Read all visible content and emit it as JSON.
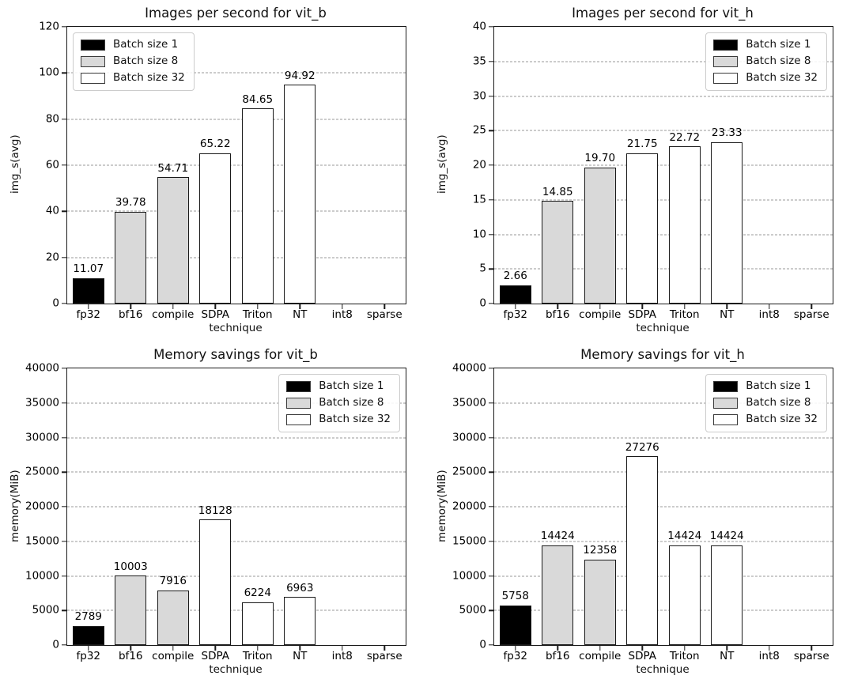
{
  "figure": {
    "background": "#ffffff"
  },
  "colors": {
    "bar_edge": "#1a1a1a",
    "spine": "#1a1a1a",
    "grid": "#9a9a9a",
    "text": "#000000",
    "batch1_fill": "#000000",
    "batch8_fill": "#d9d9d9",
    "batch32_fill": "#ffffff"
  },
  "chart_data": [
    {
      "type": "bar",
      "title": "Images per second for vit_b",
      "xlabel": "technique",
      "ylabel": "img_s(avg)",
      "ylim": [
        0,
        120
      ],
      "ytick_step": 20,
      "grid": true,
      "categories": [
        "fp32",
        "bf16",
        "compile",
        "SDPA",
        "Triton",
        "NT",
        "int8",
        "sparse"
      ],
      "values": [
        11.07,
        39.78,
        54.71,
        65.22,
        84.65,
        94.92,
        null,
        null
      ],
      "bar_labels": [
        "11.07",
        "39.78",
        "54.71",
        "65.22",
        "84.65",
        "94.92",
        "",
        ""
      ],
      "series_index": [
        0,
        1,
        1,
        2,
        2,
        2,
        null,
        null
      ],
      "legend": {
        "position": "upper left",
        "items": [
          {
            "label": "Batch size 1",
            "fill": "#000000"
          },
          {
            "label": "Batch size 8",
            "fill": "#d9d9d9"
          },
          {
            "label": "Batch size 32",
            "fill": "#ffffff"
          }
        ]
      }
    },
    {
      "type": "bar",
      "title": "Images per second for vit_h",
      "xlabel": "technique",
      "ylabel": "img_s(avg)",
      "ylim": [
        0,
        40
      ],
      "ytick_step": 5,
      "grid": true,
      "categories": [
        "fp32",
        "bf16",
        "compile",
        "SDPA",
        "Triton",
        "NT",
        "int8",
        "sparse"
      ],
      "values": [
        2.66,
        14.85,
        19.7,
        21.75,
        22.72,
        23.33,
        null,
        null
      ],
      "bar_labels": [
        "2.66",
        "14.85",
        "19.70",
        "21.75",
        "22.72",
        "23.33",
        "",
        ""
      ],
      "series_index": [
        0,
        1,
        1,
        2,
        2,
        2,
        null,
        null
      ],
      "legend": {
        "position": "upper right",
        "items": [
          {
            "label": "Batch size 1",
            "fill": "#000000"
          },
          {
            "label": "Batch size 8",
            "fill": "#d9d9d9"
          },
          {
            "label": "Batch size 32",
            "fill": "#ffffff"
          }
        ]
      }
    },
    {
      "type": "bar",
      "title": "Memory savings for vit_b",
      "xlabel": "technique",
      "ylabel": "memory(MiB)",
      "ylim": [
        0,
        40000
      ],
      "ytick_step": 5000,
      "grid": true,
      "categories": [
        "fp32",
        "bf16",
        "compile",
        "SDPA",
        "Triton",
        "NT",
        "int8",
        "sparse"
      ],
      "values": [
        2789,
        10003,
        7916,
        18128,
        6224,
        6963,
        null,
        null
      ],
      "bar_labels": [
        "2789",
        "10003",
        "7916",
        "18128",
        "6224",
        "6963",
        "",
        ""
      ],
      "series_index": [
        0,
        1,
        1,
        2,
        2,
        2,
        null,
        null
      ],
      "legend": {
        "position": "upper right",
        "items": [
          {
            "label": "Batch size 1",
            "fill": "#000000"
          },
          {
            "label": "Batch size 8",
            "fill": "#d9d9d9"
          },
          {
            "label": "Batch size 32",
            "fill": "#ffffff"
          }
        ]
      }
    },
    {
      "type": "bar",
      "title": "Memory savings for vit_h",
      "xlabel": "technique",
      "ylabel": "memory(MiB)",
      "ylim": [
        0,
        40000
      ],
      "ytick_step": 5000,
      "grid": true,
      "categories": [
        "fp32",
        "bf16",
        "compile",
        "SDPA",
        "Triton",
        "NT",
        "int8",
        "sparse"
      ],
      "values": [
        5758,
        14424,
        12358,
        27276,
        14424,
        14424,
        null,
        null
      ],
      "bar_labels": [
        "5758",
        "14424",
        "12358",
        "27276",
        "14424",
        "14424",
        "",
        ""
      ],
      "series_index": [
        0,
        1,
        1,
        2,
        2,
        2,
        null,
        null
      ],
      "legend": {
        "position": "upper right",
        "items": [
          {
            "label": "Batch size 1",
            "fill": "#000000"
          },
          {
            "label": "Batch size 8",
            "fill": "#d9d9d9"
          },
          {
            "label": "Batch size 32",
            "fill": "#ffffff"
          }
        ]
      }
    }
  ]
}
